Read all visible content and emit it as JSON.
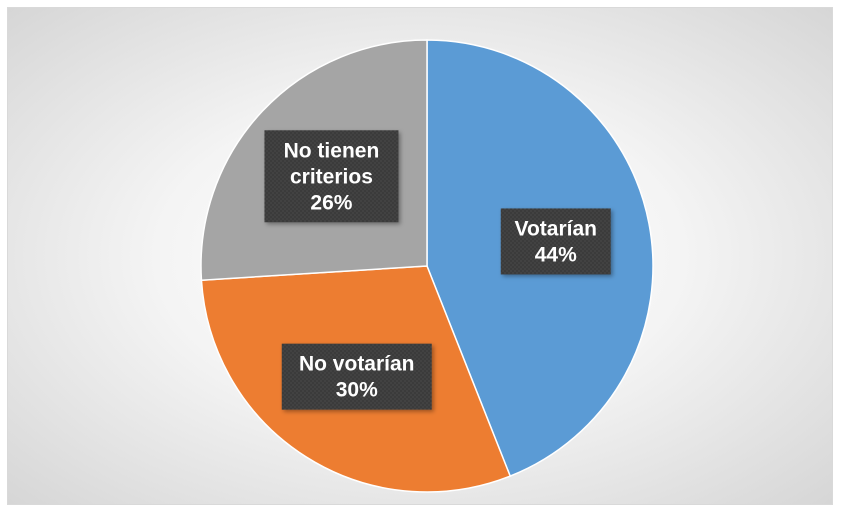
{
  "chart_data": {
    "type": "pie",
    "categories": [
      "Votarían",
      "No votarían",
      "No tienen criterios"
    ],
    "values": [
      44,
      30,
      26
    ],
    "data_labels": [
      [
        "Votarían",
        "44%"
      ],
      [
        "No votarían",
        "30%"
      ],
      [
        "No tienen",
        "criterios",
        "26%"
      ]
    ],
    "colors": [
      "#5b9bd5",
      "#ed7d31",
      "#a5a5a5"
    ],
    "label_box_color": "#3a3a3a",
    "start_angle_deg": 0,
    "direction": "clockwise",
    "legend": "none"
  }
}
